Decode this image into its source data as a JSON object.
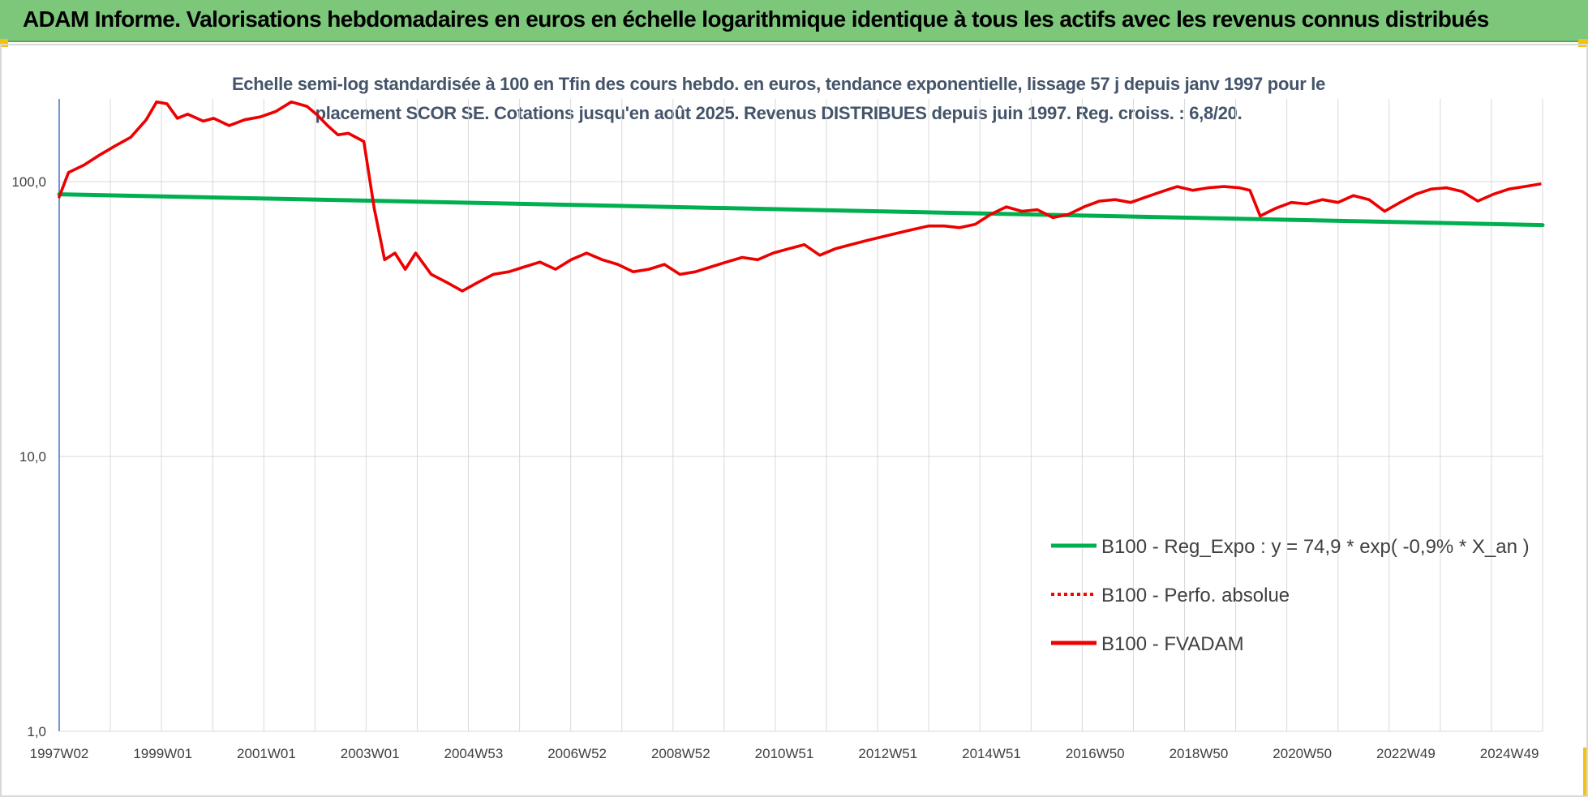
{
  "banner": {
    "title": "ADAM Informe. Valorisations hebdomadaires en euros en échelle logarithmique identique à tous les actifs avec les revenus connus distribués",
    "background": "#7cc77a"
  },
  "chart_data": {
    "type": "line",
    "title_line1": "Echelle semi-log standardisée à 100 en Tfin des cours hebdo. en euros, tendance exponentielle, lissage 57 j depuis janv 1997 pour le",
    "title_line2": "placement SCOR SE.  Cotations jusqu'en août 2025. Revenus DISTRIBUES depuis juin 1997. Reg. croiss. : 6,8/20.",
    "y_scale": "log",
    "ylim": [
      1,
      200
    ],
    "y_ticks": [
      {
        "value": 1,
        "label": "1,0"
      },
      {
        "value": 10,
        "label": "10,0"
      },
      {
        "value": 100,
        "label": "100,0"
      }
    ],
    "x_ticks": [
      "1997W02",
      "1999W01",
      "2001W01",
      "2003W01",
      "2004W53",
      "2006W52",
      "2008W52",
      "2010W51",
      "2012W51",
      "2014W51",
      "2016W50",
      "2018W50",
      "2020W50",
      "2022W49",
      "2024W49"
    ],
    "xlim": [
      1997.02,
      2025.65
    ],
    "grid": "vertical",
    "legend_position": "bottom-right",
    "series": [
      {
        "name": "B100 - Reg_Expo : y = 74,9 * exp( -0,9% *  X_an )",
        "color": "#00b050",
        "style": "solid",
        "points": [
          [
            1997.02,
            90
          ],
          [
            2025.65,
            69.5
          ]
        ]
      },
      {
        "name": "B100 - Perfo. absolue",
        "color": "#ff0000",
        "style": "dotted",
        "points": []
      },
      {
        "name": "B100 - FVADAM",
        "color": "#ee0000",
        "style": "solid",
        "points": [
          [
            1997.02,
            88
          ],
          [
            1997.2,
            108
          ],
          [
            1997.5,
            115
          ],
          [
            1997.8,
            125
          ],
          [
            1998.1,
            135
          ],
          [
            1998.4,
            145
          ],
          [
            1998.7,
            168
          ],
          [
            1998.9,
            195
          ],
          [
            1999.1,
            192
          ],
          [
            1999.3,
            170
          ],
          [
            1999.5,
            176
          ],
          [
            1999.8,
            166
          ],
          [
            2000.0,
            170
          ],
          [
            2000.3,
            160
          ],
          [
            2000.6,
            168
          ],
          [
            2000.9,
            172
          ],
          [
            2001.2,
            180
          ],
          [
            2001.5,
            195
          ],
          [
            2001.8,
            188
          ],
          [
            2002.0,
            175
          ],
          [
            2002.2,
            160
          ],
          [
            2002.4,
            148
          ],
          [
            2002.6,
            150
          ],
          [
            2002.9,
            140
          ],
          [
            2003.1,
            80
          ],
          [
            2003.3,
            52
          ],
          [
            2003.5,
            55
          ],
          [
            2003.7,
            48
          ],
          [
            2003.9,
            55
          ],
          [
            2004.2,
            46
          ],
          [
            2004.5,
            43
          ],
          [
            2004.8,
            40
          ],
          [
            2005.1,
            43
          ],
          [
            2005.4,
            46
          ],
          [
            2005.7,
            47
          ],
          [
            2006.0,
            49
          ],
          [
            2006.3,
            51
          ],
          [
            2006.6,
            48
          ],
          [
            2006.9,
            52
          ],
          [
            2007.2,
            55
          ],
          [
            2007.5,
            52
          ],
          [
            2007.8,
            50
          ],
          [
            2008.1,
            47
          ],
          [
            2008.4,
            48
          ],
          [
            2008.7,
            50
          ],
          [
            2009.0,
            46
          ],
          [
            2009.3,
            47
          ],
          [
            2009.6,
            49
          ],
          [
            2009.9,
            51
          ],
          [
            2010.2,
            53
          ],
          [
            2010.5,
            52
          ],
          [
            2010.8,
            55
          ],
          [
            2011.1,
            57
          ],
          [
            2011.4,
            59
          ],
          [
            2011.7,
            54
          ],
          [
            2012.0,
            57
          ],
          [
            2012.3,
            59
          ],
          [
            2012.6,
            61
          ],
          [
            2012.9,
            63
          ],
          [
            2013.2,
            65
          ],
          [
            2013.5,
            67
          ],
          [
            2013.8,
            69
          ],
          [
            2014.1,
            69
          ],
          [
            2014.4,
            68
          ],
          [
            2014.7,
            70
          ],
          [
            2015.0,
            76
          ],
          [
            2015.3,
            81
          ],
          [
            2015.6,
            78
          ],
          [
            2015.9,
            79
          ],
          [
            2016.2,
            74
          ],
          [
            2016.5,
            76
          ],
          [
            2016.8,
            81
          ],
          [
            2017.1,
            85
          ],
          [
            2017.4,
            86
          ],
          [
            2017.7,
            84
          ],
          [
            2018.0,
            88
          ],
          [
            2018.3,
            92
          ],
          [
            2018.6,
            96
          ],
          [
            2018.9,
            93
          ],
          [
            2019.2,
            95
          ],
          [
            2019.5,
            96
          ],
          [
            2019.8,
            95
          ],
          [
            2020.0,
            93
          ],
          [
            2020.2,
            75
          ],
          [
            2020.5,
            80
          ],
          [
            2020.8,
            84
          ],
          [
            2021.1,
            83
          ],
          [
            2021.4,
            86
          ],
          [
            2021.7,
            84
          ],
          [
            2022.0,
            89
          ],
          [
            2022.3,
            86
          ],
          [
            2022.6,
            78
          ],
          [
            2022.9,
            84
          ],
          [
            2023.2,
            90
          ],
          [
            2023.5,
            94
          ],
          [
            2023.8,
            95
          ],
          [
            2024.1,
            92
          ],
          [
            2024.4,
            85
          ],
          [
            2024.7,
            90
          ],
          [
            2025.0,
            94
          ],
          [
            2025.3,
            96
          ],
          [
            2025.6,
            98
          ]
        ]
      }
    ]
  }
}
